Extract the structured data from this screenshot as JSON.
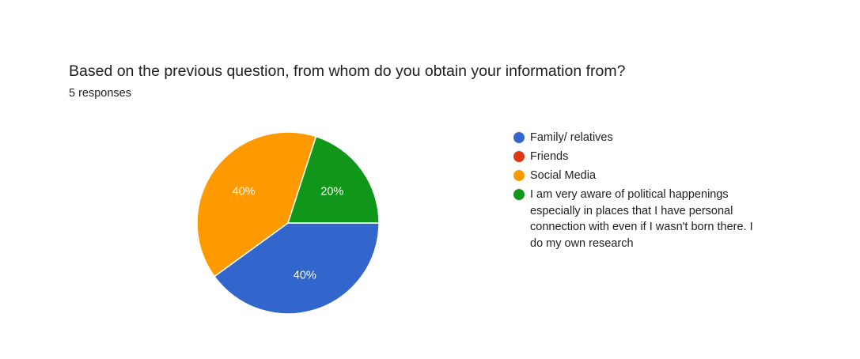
{
  "question": {
    "title": "Based on the previous question, from whom do you obtain your information from?",
    "responses": "5 responses"
  },
  "chart_data": {
    "type": "pie",
    "slices": [
      {
        "label": "Family/ relatives",
        "value": 2,
        "percent_label": "40%",
        "color": "#3366cc"
      },
      {
        "label": "Friends",
        "value": 0,
        "percent_label": "",
        "color": "#dc3912"
      },
      {
        "label": "Social Media",
        "value": 2,
        "percent_label": "40%",
        "color": "#ff9900"
      },
      {
        "label": "I am very aware of political happenings especially in places that I have personal connection with even if I wasn't born there. I do my own research",
        "value": 1,
        "percent_label": "20%",
        "color": "#109618"
      }
    ],
    "legend_position": "right"
  }
}
